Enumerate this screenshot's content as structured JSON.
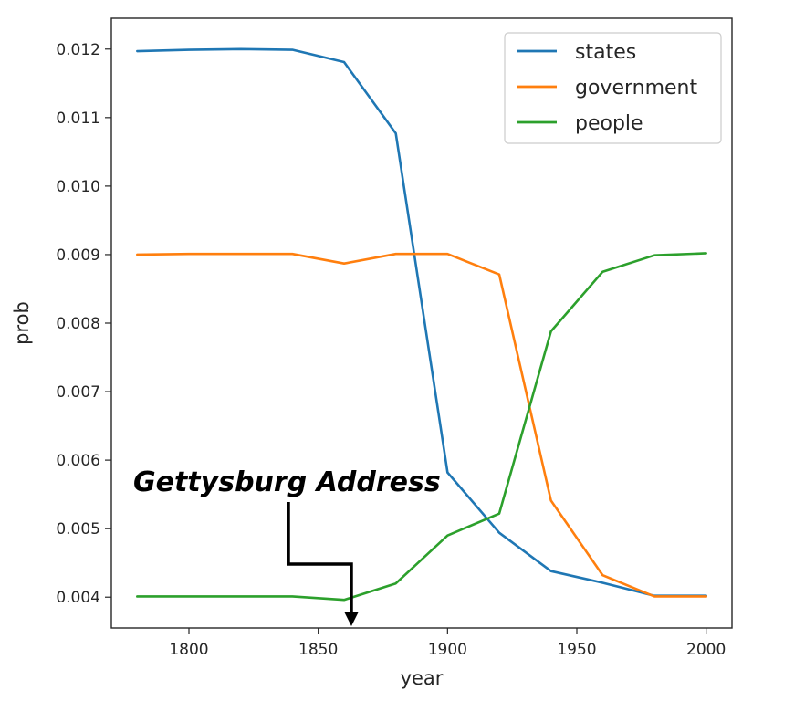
{
  "chart_data": {
    "type": "line",
    "title": "",
    "xlabel": "year",
    "ylabel": "prob",
    "xlim": [
      1770,
      2010
    ],
    "ylim": [
      0.00355,
      0.01245
    ],
    "xticks": [
      1800,
      1850,
      1900,
      1950,
      2000
    ],
    "xtick_labels": [
      "1800",
      "1850",
      "1900",
      "1950",
      "2000"
    ],
    "yticks": [
      0.004,
      0.005,
      0.006,
      0.007,
      0.008,
      0.009,
      0.01,
      0.011,
      0.012
    ],
    "ytick_labels": [
      "0.004",
      "0.005",
      "0.006",
      "0.007",
      "0.008",
      "0.009",
      "0.010",
      "0.011",
      "0.012"
    ],
    "grid": false,
    "legend_position": "top-right",
    "x": [
      1780,
      1800,
      1820,
      1840,
      1860,
      1880,
      1900,
      1920,
      1940,
      1960,
      1980,
      2000
    ],
    "series": [
      {
        "name": "states",
        "color": "#1f77b4",
        "values": [
          0.01197,
          0.01199,
          0.012,
          0.01199,
          0.01181,
          0.01077,
          0.00582,
          0.00494,
          0.00438,
          0.00421,
          0.00402,
          0.00402
        ]
      },
      {
        "name": "government",
        "color": "#ff7f0e",
        "values": [
          0.009,
          0.00901,
          0.00901,
          0.00901,
          0.00887,
          0.00901,
          0.00901,
          0.00871,
          0.00541,
          0.00432,
          0.00401,
          0.00401
        ]
      },
      {
        "name": "people",
        "color": "#2ca02c",
        "values": [
          0.00401,
          0.00401,
          0.00401,
          0.00401,
          0.00396,
          0.0042,
          0.0049,
          0.00522,
          0.00788,
          0.00875,
          0.00899,
          0.00902
        ]
      }
    ],
    "annotations": [
      {
        "text": "Gettysburg Address",
        "x": 1863
      }
    ]
  }
}
